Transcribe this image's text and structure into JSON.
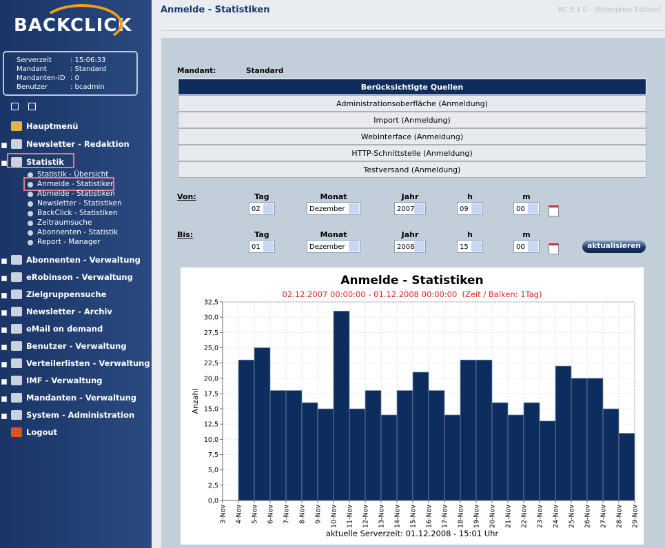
{
  "header": {
    "title": "Anmelde - Statistiken",
    "version": "BC 5.1.0 - [Enterprise Edition]"
  },
  "sidebar": {
    "logo": "BACKCLICK",
    "info": [
      {
        "label": "Serverzeit",
        "value": ": 15:06:33"
      },
      {
        "label": "Mandant",
        "value": ": Standard"
      },
      {
        "label": "Mandanten-ID",
        "value": ": 0"
      },
      {
        "label": "Benutzer",
        "value": ": bcadmin"
      }
    ],
    "menu": [
      {
        "label": "Hauptmenü"
      },
      {
        "label": "Newsletter - Redaktion"
      },
      {
        "label": "Statistik",
        "children": [
          "Statistik - Übersicht",
          "Anmelde - Statistiken",
          "Abmelde - Statistiken",
          "Newsletter - Statistiken",
          "BackClick - Statistiken",
          "Zeitraumsuche",
          "Abonnenten - Statistik",
          "Report - Manager"
        ]
      },
      {
        "label": "Abonnenten - Verwaltung"
      },
      {
        "label": "eRobinson - Verwaltung"
      },
      {
        "label": "Zielgruppensuche"
      },
      {
        "label": "Newsletter - Archiv"
      },
      {
        "label": "eMail on demand"
      },
      {
        "label": "Benutzer - Verwaltung"
      },
      {
        "label": "Verteilerlisten - Verwaltung"
      },
      {
        "label": "IMF - Verwaltung"
      },
      {
        "label": "Mandanten - Verwaltung"
      },
      {
        "label": "System - Administration"
      },
      {
        "label": "Logout"
      }
    ]
  },
  "form": {
    "mandant_label": "Mandant:",
    "mandant": "Standard",
    "sources": {
      "header": "Berücksichtigte Quellen",
      "rows": [
        "Administrationsoberfläche (Anmeldung)",
        "Import (Anmeldung)",
        "WebInterface (Anmeldung)",
        "HTTP-Schnittstelle (Anmeldung)",
        "Testversand (Anmeldung)"
      ]
    },
    "von": {
      "label": "Von:",
      "fields": [
        {
          "label": "Tag",
          "value": "02"
        },
        {
          "label": "Monat",
          "value": "Dezember"
        },
        {
          "label": "Jahr",
          "value": "2007"
        },
        {
          "label": "h",
          "value": "09"
        },
        {
          "label": "m",
          "value": "00"
        }
      ]
    },
    "bis": {
      "label": "Bis:",
      "fields": [
        {
          "label": "Tag",
          "value": "01"
        },
        {
          "label": "Monat",
          "value": "Dezember"
        },
        {
          "label": "Jahr",
          "value": "2008"
        },
        {
          "label": "h",
          "value": "15"
        },
        {
          "label": "m",
          "value": "00"
        }
      ]
    },
    "button": "aktualisieren"
  },
  "chart_data": {
    "type": "histogram",
    "title": "Anmelde - Statistiken",
    "subtitle": "02.12.2007 00:00:00 - 01.12.2008 00:00:00  (Zeit / Balken: 1Tag)",
    "y_label": "Anzahl",
    "footer": "aktuelle Serverzeit: 01.12.2008 - 15:01 Uhr",
    "bins": [
      "3-Nov",
      "4-Nov",
      "5-Nov",
      "6-Nov",
      "7-Nov",
      "8-Nov",
      "9-Nov",
      "10-Nov",
      "11-Nov",
      "12-Nov",
      "13-Nov",
      "14-Nov",
      "15-Nov",
      "16-Nov",
      "17-Nov",
      "18-Nov",
      "19-Nov",
      "20-Nov",
      "21-Nov",
      "22-Nov",
      "23-Nov",
      "24-Nov",
      "25-Nov",
      "26-Nov",
      "27-Nov",
      "28-Nov",
      "29-Nov"
    ],
    "values": [
      0,
      23,
      25,
      18,
      18,
      16,
      15,
      31,
      15,
      18,
      14,
      18,
      21,
      18,
      14,
      23,
      23,
      16,
      14,
      16,
      13,
      22,
      20,
      20,
      15,
      11
    ],
    "color": "#0d2d5e",
    "ylim": [
      0,
      32.5
    ],
    "yticks": [
      {
        "value": 0,
        "label": "0,0"
      },
      {
        "value": 2.5,
        "label": "2,5"
      },
      {
        "value": 5,
        "label": "5,0"
      },
      {
        "value": 7.5,
        "label": "7,5"
      },
      {
        "value": 10,
        "label": "10,0"
      },
      {
        "value": 12.5,
        "label": "12,5"
      },
      {
        "value": 15,
        "label": "15,0"
      },
      {
        "value": 17.5,
        "label": "17,5"
      },
      {
        "value": 20,
        "label": "20,0"
      },
      {
        "value": 22.5,
        "label": "22,5"
      },
      {
        "value": 25,
        "label": "25,0"
      },
      {
        "value": 27.5,
        "label": "27,5"
      },
      {
        "value": 30,
        "label": "30,0"
      },
      {
        "value": 32.5,
        "label": "32,5"
      }
    ],
    "grid": true
  }
}
